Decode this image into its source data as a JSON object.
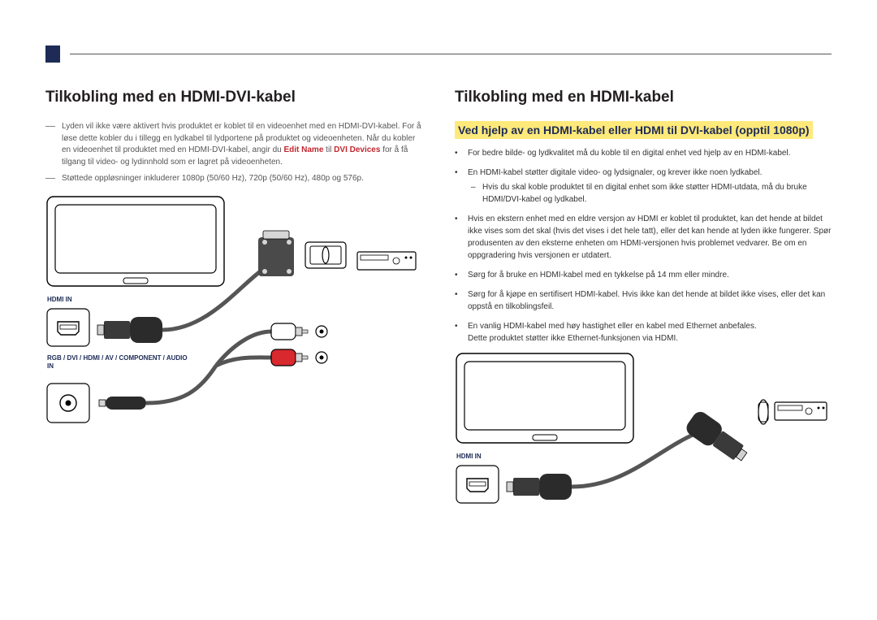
{
  "left": {
    "heading": "Tilkobling med en HDMI-DVI-kabel",
    "notes": [
      "Lyden vil ikke være aktivert hvis produktet er koblet til en videoenhet med en HDMI-DVI-kabel. For å løse dette kobler du i tillegg en lydkabel til lydportene på produktet og videoenheten. Når du kobler en videoenhet til produktet med en HDMI-DVI-kabel, angir du <span class='red-bold'>Edit Name</span> til <span class='red-bold'>DVI Devices</span> for å få tilgang til video- og lydinnhold som er lagret på videoenheten.",
      "Støttede oppløsninger inkluderer 1080p (50/60 Hz), 720p (50/60 Hz), 480p og 576p."
    ],
    "hdmi_in_label": "HDMI IN",
    "audio_in_label": "RGB / DVI / HDMI / AV / COMPONENT / AUDIO IN"
  },
  "right": {
    "heading": "Tilkobling med en HDMI-kabel",
    "subheading": "Ved hjelp av en HDMI-kabel eller HDMI til DVI-kabel (opptil 1080p)",
    "bullets": [
      {
        "text": "For bedre bilde- og lydkvalitet må du koble til en digital enhet ved hjelp av en HDMI-kabel."
      },
      {
        "text": "En HDMI-kabel støtter digitale video- og lydsignaler, og krever ikke noen lydkabel.",
        "sub": "Hvis du skal koble produktet til en digital enhet som ikke støtter HDMI-utdata, må du bruke HDMI/DVI-kabel og lydkabel."
      },
      {
        "text": "Hvis en ekstern enhet med en eldre versjon av HDMI er koblet til produktet, kan det hende at bildet ikke vises som det skal (hvis det vises i det hele tatt), eller det kan hende at lyden ikke fungerer. Spør produsenten av den eksterne enheten om HDMI-versjonen hvis problemet vedvarer. Be om en oppgradering hvis versjonen er utdatert."
      },
      {
        "text": "Sørg for å bruke en HDMI-kabel med en tykkelse på 14 mm eller mindre."
      },
      {
        "text": "Sørg for å kjøpe en sertifisert HDMI-kabel. Hvis ikke kan det hende at bildet ikke vises, eller det kan oppstå en tilkoblingsfeil."
      },
      {
        "text": "En vanlig HDMI-kabel med høy hastighet eller en kabel med Ethernet anbefales.\nDette produktet støtter ikke Ethernet-funksjonen via HDMI."
      }
    ],
    "hdmi_in_label": "HDMI IN"
  },
  "colors": {
    "navy": "#1d2b56",
    "highlight_bg": "#ffe97a",
    "red": "#c1272d",
    "white_rca": "#ffffff",
    "red_rca": "#d8292f"
  }
}
